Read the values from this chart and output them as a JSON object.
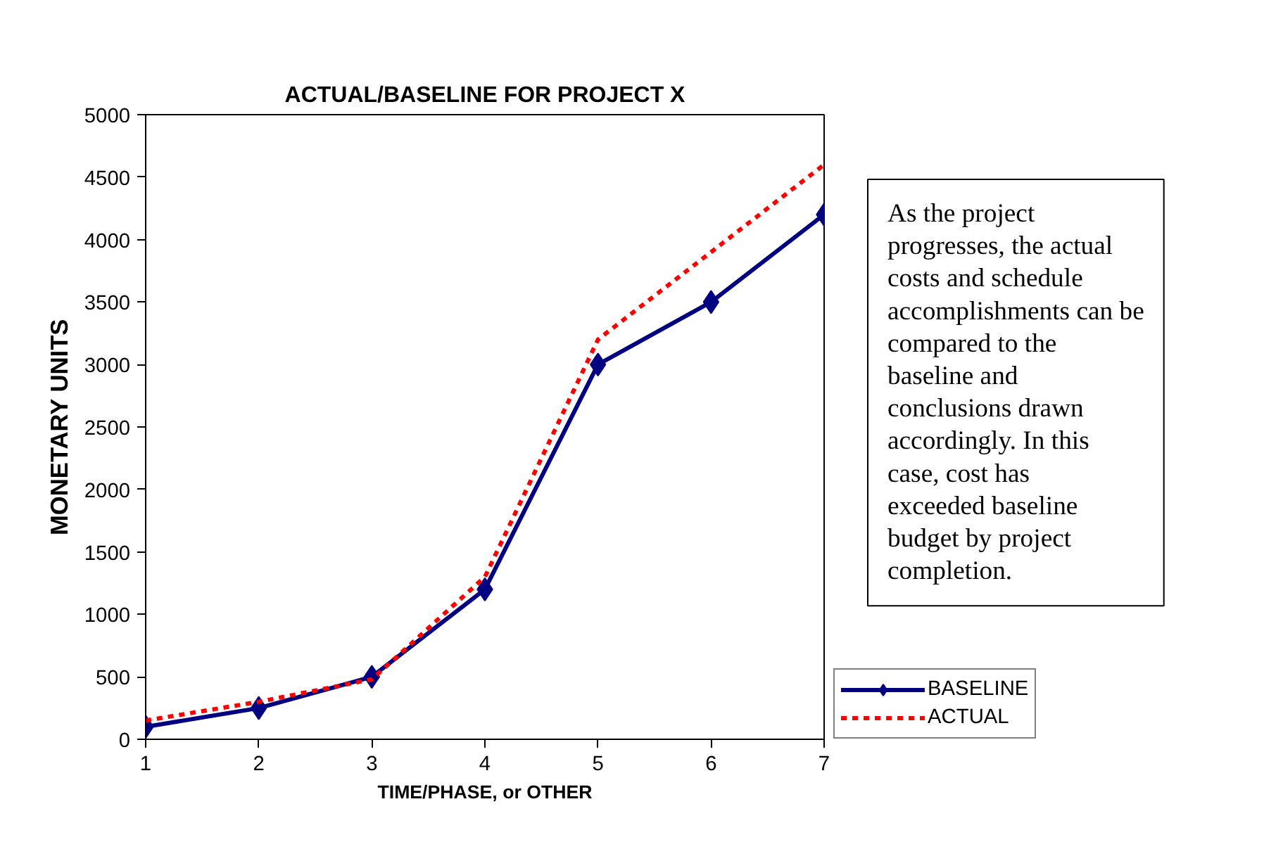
{
  "chart_data": {
    "type": "line",
    "title": "ACTUAL/BASELINE FOR PROJECT X",
    "xlabel": "TIME/PHASE, or OTHER",
    "ylabel": "MONETARY UNITS",
    "x": [
      1,
      2,
      3,
      4,
      5,
      6,
      7
    ],
    "xlim": [
      1,
      7
    ],
    "xticks": [
      1,
      2,
      3,
      4,
      5,
      6,
      7
    ],
    "ylim": [
      0,
      5000
    ],
    "yticks": [
      0,
      500,
      1000,
      1500,
      2000,
      2500,
      3000,
      3500,
      4000,
      4500,
      5000
    ],
    "series": [
      {
        "name": "BASELINE",
        "color": "#000080",
        "values": [
          100,
          250,
          500,
          1200,
          3000,
          3500,
          4200
        ],
        "marker": "diamond",
        "line_style": "solid"
      },
      {
        "name": "ACTUAL",
        "color": "#ff0000",
        "values": [
          150,
          300,
          480,
          1300,
          3200,
          3900,
          4600
        ],
        "marker": "none",
        "line_style": "dashed"
      }
    ],
    "grid": false,
    "legend": "bottom right",
    "annotations": [
      "As the project progresses, the actual costs and schedule accomplishments can be compared to the baseline and conclusions drawn accordingly. In this case, cost has exceeded baseline budget by project completion."
    ]
  }
}
